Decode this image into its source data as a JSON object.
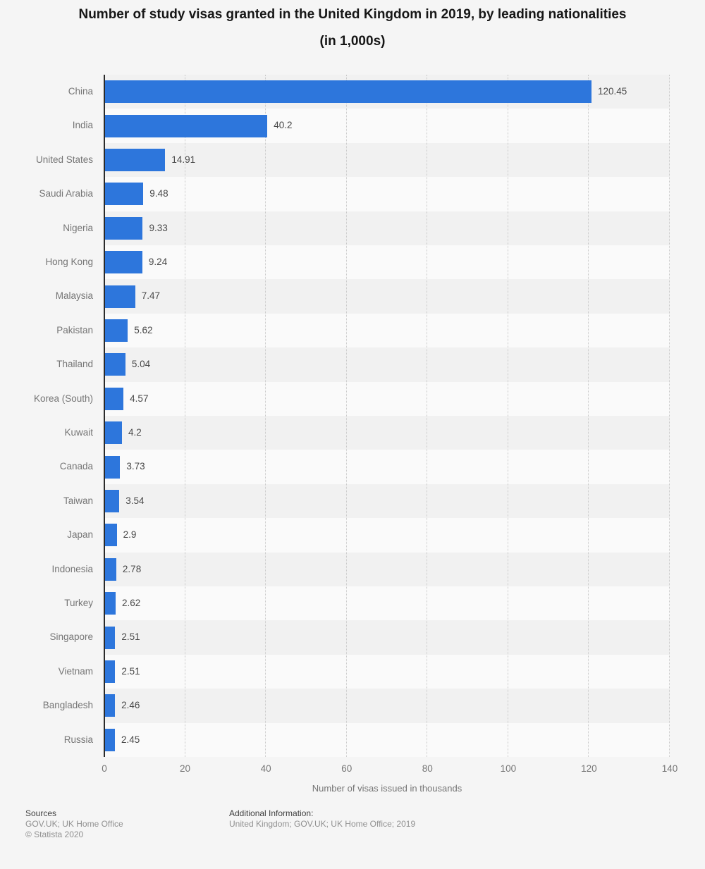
{
  "header": {
    "title_lines": [
      "Number of study visas granted in the United Kingdom in 2019, by leading nationalities",
      "(in 1,000s)"
    ]
  },
  "chart_data": {
    "type": "bar",
    "orientation": "horizontal",
    "title": "Number of study visas granted in the United Kingdom in 2019, by leading nationalities (in 1,000s)",
    "categories": [
      "China",
      "India",
      "United States",
      "Saudi Arabia",
      "Nigeria",
      "Hong Kong",
      "Malaysia",
      "Pakistan",
      "Thailand",
      "Korea (South)",
      "Kuwait",
      "Canada",
      "Taiwan",
      "Japan",
      "Indonesia",
      "Turkey",
      "Singapore",
      "Vietnam",
      "Bangladesh",
      "Russia"
    ],
    "values": [
      120.45,
      40.2,
      14.91,
      9.48,
      9.33,
      9.24,
      7.47,
      5.62,
      5.04,
      4.57,
      4.2,
      3.73,
      3.54,
      2.9,
      2.78,
      2.62,
      2.51,
      2.51,
      2.46,
      2.45
    ],
    "value_labels": [
      "120.45",
      "40.2",
      "14.91",
      "9.48",
      "9.33",
      "9.24",
      "7.47",
      "5.62",
      "5.04",
      "4.57",
      "4.2",
      "3.73",
      "3.54",
      "2.9",
      "2.78",
      "2.62",
      "2.51",
      "2.51",
      "2.46",
      "2.45"
    ],
    "xlabel": "Number of visas issued in thousands",
    "xlim": [
      0,
      140
    ],
    "xticks": [
      0,
      20,
      40,
      60,
      80,
      100,
      120,
      140
    ],
    "grid": "vertical-dotted",
    "legend": "none",
    "bar_color": "#2d76dc"
  },
  "footer": {
    "sources_heading": "Sources",
    "sources_line": "GOV.UK; UK Home Office",
    "copyright": "© Statista 2020",
    "additional_heading": "Additional Information:",
    "additional_line": "United Kingdom; GOV.UK; UK Home Office; 2019"
  },
  "colors": {
    "bar": "#2d76dc",
    "page_background": "#f5f5f5",
    "row_band_dark": "#f1f1f1",
    "row_band_light": "#fafafa",
    "axis_line": "#2b2b2b",
    "gridline": "#c9c9c9",
    "category_label": "#757575",
    "value_label": "#484848",
    "title_text": "#161616"
  }
}
